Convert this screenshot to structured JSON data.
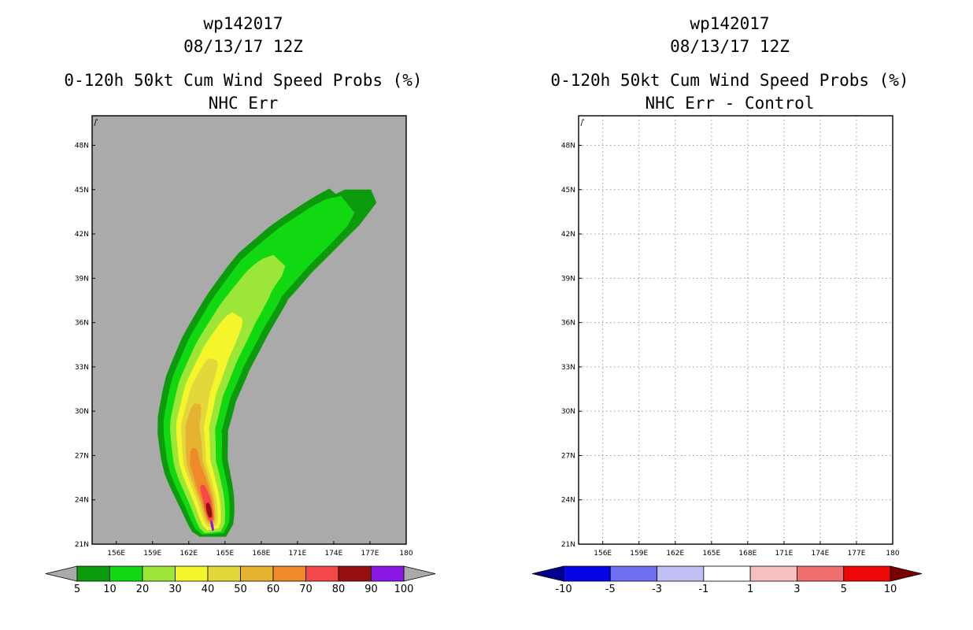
{
  "chart_data": [
    {
      "type": "heatmap",
      "title_lines": [
        "wp142017",
        "08/13/17 12Z",
        "0-120h 50kt Cum Wind Speed Probs (%)",
        "NHC Err"
      ],
      "x_ticks": [
        "156E",
        "159E",
        "162E",
        "165E",
        "168E",
        "171E",
        "174E",
        "177E",
        "180"
      ],
      "y_ticks": [
        "21N",
        "24N",
        "27N",
        "30N",
        "33N",
        "36N",
        "39N",
        "42N",
        "45N",
        "48N"
      ],
      "xlim": [
        154,
        180
      ],
      "ylim": [
        21,
        50
      ],
      "background_color": "#aaaaaa",
      "colorbar": {
        "labels": [
          "5",
          "10",
          "20",
          "30",
          "40",
          "50",
          "60",
          "70",
          "80",
          "90",
          "100"
        ],
        "colors": [
          "#0c9b0c",
          "#11d911",
          "#9be637",
          "#f5f52b",
          "#e4d73b",
          "#e6b232",
          "#ee8a2a",
          "#f5484a",
          "#961010",
          "#8a18e6"
        ],
        "end_color": "#aaaaaa"
      },
      "track_center_lon": [
        164.0,
        163.5,
        162.5,
        162.3,
        163.0,
        164.3,
        166.0,
        168.0,
        170.5,
        173.5,
        176.0
      ],
      "track_center_lat": [
        22.0,
        24.0,
        26.5,
        29.0,
        31.5,
        34.0,
        36.5,
        39.0,
        41.0,
        43.0,
        44.5
      ],
      "contour_levels": [
        5,
        10,
        20,
        30,
        40,
        50,
        60,
        70,
        80,
        90
      ],
      "contour_halfwidth_deg": [
        3.4,
        2.8,
        2.1,
        1.5,
        1.05,
        0.75,
        0.52,
        0.35,
        0.22,
        0.12
      ],
      "contour_lat_extent": [
        [
          21.5,
          45.0
        ],
        [
          21.7,
          44.0
        ],
        [
          21.8,
          40.2
        ],
        [
          22.0,
          36.5
        ],
        [
          22.2,
          33.5
        ],
        [
          22.4,
          30.5
        ],
        [
          22.5,
          27.5
        ],
        [
          22.6,
          25.0
        ],
        [
          22.8,
          23.8
        ],
        [
          21.9,
          22.6
        ]
      ]
    },
    {
      "type": "heatmap",
      "title_lines": [
        "wp142017",
        "08/13/17 12Z",
        "0-120h 50kt Cum Wind Speed Probs (%)",
        "NHC Err - Control"
      ],
      "x_ticks": [
        "156E",
        "159E",
        "162E",
        "165E",
        "168E",
        "171E",
        "174E",
        "177E",
        "180"
      ],
      "y_ticks": [
        "21N",
        "24N",
        "27N",
        "30N",
        "33N",
        "36N",
        "39N",
        "42N",
        "45N",
        "48N"
      ],
      "xlim": [
        154,
        180
      ],
      "ylim": [
        21,
        50
      ],
      "background_color": "#ffffff",
      "grid": true,
      "colorbar": {
        "labels": [
          "-10",
          "-5",
          "-3",
          "-1",
          "1",
          "3",
          "5",
          "10"
        ],
        "colors": [
          "#0505e6",
          "#6e6ef0",
          "#c0c0f5",
          "#ffffff",
          "#f8c0c0",
          "#f06e6e",
          "#ee0808"
        ],
        "start_color": "#00008c",
        "end_color": "#780000"
      }
    }
  ]
}
